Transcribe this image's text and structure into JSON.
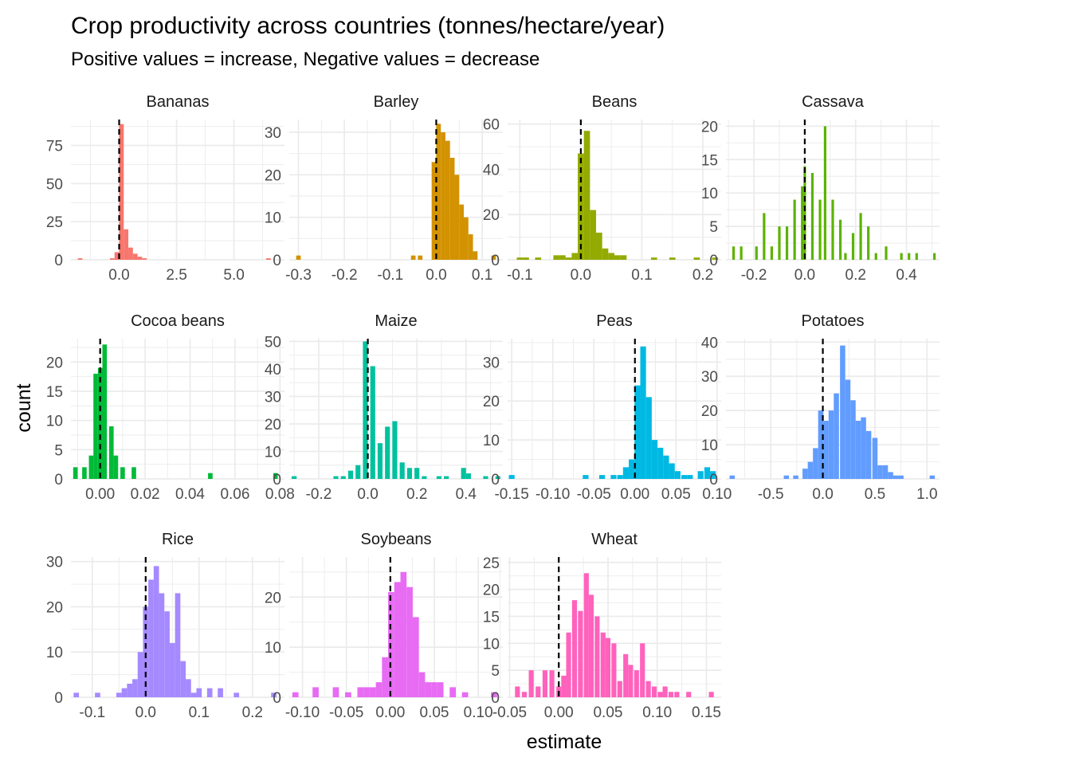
{
  "chart_data": {
    "type": "bar",
    "kind": "faceted histogram",
    "title": "Crop productivity across countries (tonnes/hectare/year)",
    "subtitle": "Positive values = increase, Negative values = decrease",
    "xlabel": "estimate",
    "ylabel": "count",
    "grid": true,
    "legend": "none",
    "reference_line": {
      "x": 0,
      "style": "dashed",
      "color": "#000000"
    },
    "facets": [
      {
        "name": "Bananas",
        "color": "#F8766D",
        "xlim": [
          -2.1,
          7.2
        ],
        "ylim": [
          0,
          92
        ],
        "xticks": [
          0,
          2.5,
          5
        ],
        "xtick_labels": [
          "0.0",
          "2.5",
          "5.0"
        ],
        "yticks": [
          0,
          25,
          50,
          75
        ],
        "ytick_labels": [
          "0",
          "25",
          "50",
          "75"
        ],
        "bins": [
          [
            -1.7,
            1
          ],
          [
            -0.3,
            1
          ],
          [
            -0.1,
            5
          ],
          [
            0.1,
            89
          ],
          [
            0.3,
            20
          ],
          [
            0.5,
            8
          ],
          [
            0.7,
            4
          ],
          [
            0.9,
            2
          ],
          [
            1.1,
            1
          ],
          [
            6.5,
            1
          ]
        ]
      },
      {
        "name": "Barley",
        "color": "#D39200",
        "xlim": [
          -0.32,
          0.145
        ],
        "ylim": [
          0,
          33
        ],
        "xticks": [
          -0.3,
          -0.2,
          -0.1,
          0,
          0.1
        ],
        "xtick_labels": [
          "-0.3",
          "-0.2",
          "-0.1",
          "0.0",
          "0.1"
        ],
        "yticks": [
          0,
          10,
          20,
          30
        ],
        "ytick_labels": [
          "0",
          "10",
          "20",
          "30"
        ],
        "bins": [
          [
            -0.3,
            1
          ],
          [
            -0.05,
            1
          ],
          [
            -0.035,
            1
          ],
          [
            -0.005,
            23
          ],
          [
            0.005,
            32
          ],
          [
            0.015,
            30
          ],
          [
            0.025,
            28
          ],
          [
            0.035,
            24
          ],
          [
            0.045,
            20
          ],
          [
            0.055,
            13
          ],
          [
            0.065,
            10
          ],
          [
            0.075,
            6
          ],
          [
            0.085,
            2
          ],
          [
            0.125,
            1
          ]
        ]
      },
      {
        "name": "Beans",
        "color": "#93AA00",
        "xlim": [
          -0.12,
          0.23
        ],
        "ylim": [
          0,
          62
        ],
        "xticks": [
          -0.1,
          0,
          0.1,
          0.2
        ],
        "xtick_labels": [
          "-0.1",
          "0.0",
          "0.1",
          "0.2"
        ],
        "yticks": [
          0,
          20,
          40,
          60
        ],
        "ytick_labels": [
          "0",
          "20",
          "40",
          "60"
        ],
        "bins": [
          [
            -0.1,
            1
          ],
          [
            -0.09,
            1
          ],
          [
            -0.07,
            1
          ],
          [
            -0.04,
            2
          ],
          [
            -0.03,
            2
          ],
          [
            -0.02,
            1
          ],
          [
            -0.01,
            3
          ],
          [
            0.0,
            47
          ],
          [
            0.01,
            57
          ],
          [
            0.02,
            22
          ],
          [
            0.03,
            12
          ],
          [
            0.04,
            5
          ],
          [
            0.05,
            3
          ],
          [
            0.06,
            2
          ],
          [
            0.07,
            2
          ],
          [
            0.12,
            1
          ],
          [
            0.15,
            1
          ],
          [
            0.19,
            1
          ],
          [
            0.22,
            1
          ]
        ]
      },
      {
        "name": "Cassava",
        "color": "#5BB300",
        "xlim": [
          -0.31,
          0.53
        ],
        "ylim": [
          0,
          21
        ],
        "xticks": [
          -0.2,
          0,
          0.2,
          0.4
        ],
        "xtick_labels": [
          "-0.2",
          "0.0",
          "0.2",
          "0.4"
        ],
        "yticks": [
          0,
          5,
          10,
          15,
          20
        ],
        "ytick_labels": [
          "0",
          "5",
          "10",
          "15",
          "20"
        ],
        "bins": [
          [
            -0.28,
            2
          ],
          [
            -0.25,
            2
          ],
          [
            -0.19,
            2
          ],
          [
            -0.16,
            7
          ],
          [
            -0.13,
            2
          ],
          [
            -0.1,
            5
          ],
          [
            -0.07,
            5
          ],
          [
            -0.04,
            9
          ],
          [
            -0.01,
            11
          ],
          [
            0.0,
            14
          ],
          [
            0.03,
            13
          ],
          [
            0.06,
            9
          ],
          [
            0.08,
            20
          ],
          [
            0.11,
            9
          ],
          [
            0.14,
            6
          ],
          [
            0.16,
            1
          ],
          [
            0.19,
            4
          ],
          [
            0.22,
            7
          ],
          [
            0.25,
            5
          ],
          [
            0.28,
            1
          ],
          [
            0.32,
            2
          ],
          [
            0.38,
            1
          ],
          [
            0.41,
            1
          ],
          [
            0.44,
            1
          ],
          [
            0.51,
            1
          ]
        ]
      },
      {
        "name": "Cocoa beans",
        "color": "#00BA38",
        "xlim": [
          -0.013,
          0.082
        ],
        "ylim": [
          0,
          24
        ],
        "xticks": [
          0,
          0.02,
          0.04,
          0.06,
          0.08
        ],
        "xtick_labels": [
          "0.00",
          "0.02",
          "0.04",
          "0.06",
          "0.08"
        ],
        "yticks": [
          0,
          5,
          10,
          15,
          20
        ],
        "ytick_labels": [
          "0",
          "5",
          "10",
          "15",
          "20"
        ],
        "bins": [
          [
            -0.011,
            2
          ],
          [
            -0.007,
            2
          ],
          [
            -0.004,
            4
          ],
          [
            -0.002,
            18
          ],
          [
            0.0,
            19
          ],
          [
            0.002,
            23
          ],
          [
            0.005,
            9
          ],
          [
            0.007,
            4
          ],
          [
            0.01,
            2
          ],
          [
            0.015,
            2
          ],
          [
            0.049,
            1
          ],
          [
            0.078,
            1
          ]
        ]
      },
      {
        "name": "Maize",
        "color": "#00C19F",
        "xlim": [
          -0.32,
          0.55
        ],
        "ylim": [
          0,
          51
        ],
        "xticks": [
          -0.2,
          0,
          0.2,
          0.4
        ],
        "xtick_labels": [
          "-0.2",
          "0.0",
          "0.2",
          "0.4"
        ],
        "yticks": [
          0,
          10,
          20,
          30,
          40,
          50
        ],
        "ytick_labels": [
          "0",
          "10",
          "20",
          "30",
          "40",
          "50"
        ],
        "bins": [
          [
            -0.3,
            1
          ],
          [
            -0.13,
            1
          ],
          [
            -0.1,
            1
          ],
          [
            -0.07,
            3
          ],
          [
            -0.04,
            5
          ],
          [
            -0.01,
            50
          ],
          [
            0.02,
            41
          ],
          [
            0.05,
            13
          ],
          [
            0.08,
            19
          ],
          [
            0.11,
            21
          ],
          [
            0.14,
            6
          ],
          [
            0.17,
            4
          ],
          [
            0.2,
            4
          ],
          [
            0.23,
            1
          ],
          [
            0.29,
            1
          ],
          [
            0.32,
            1
          ],
          [
            0.39,
            4
          ],
          [
            0.41,
            2
          ],
          [
            0.48,
            1
          ],
          [
            0.53,
            1
          ]
        ]
      },
      {
        "name": "Peas",
        "color": "#00B9E3",
        "xlim": [
          -0.155,
          0.105
        ],
        "ylim": [
          0,
          36
        ],
        "xticks": [
          -0.15,
          -0.1,
          -0.05,
          0,
          0.05,
          0.1
        ],
        "xtick_labels": [
          "-0.15",
          "-0.10",
          "-0.05",
          "0.00",
          "0.05",
          "0.10"
        ],
        "yticks": [
          0,
          10,
          20,
          30
        ],
        "ytick_labels": [
          "0",
          "10",
          "20",
          "30"
        ],
        "bins": [
          [
            -0.15,
            1
          ],
          [
            -0.06,
            1
          ],
          [
            -0.04,
            1
          ],
          [
            -0.026,
            1
          ],
          [
            -0.018,
            1
          ],
          [
            -0.011,
            3
          ],
          [
            -0.004,
            5
          ],
          [
            0.003,
            24
          ],
          [
            0.01,
            34
          ],
          [
            0.017,
            21
          ],
          [
            0.024,
            10
          ],
          [
            0.031,
            8
          ],
          [
            0.038,
            6
          ],
          [
            0.045,
            4
          ],
          [
            0.052,
            2
          ],
          [
            0.06,
            1
          ],
          [
            0.067,
            1
          ],
          [
            0.08,
            2
          ],
          [
            0.088,
            3
          ],
          [
            0.095,
            2
          ]
        ]
      },
      {
        "name": "Potatoes",
        "color": "#619CFF",
        "xlim": [
          -0.93,
          1.12
        ],
        "ylim": [
          0,
          41
        ],
        "xticks": [
          -0.5,
          0,
          0.5,
          1.0
        ],
        "xtick_labels": [
          "-0.5",
          "0.0",
          "0.5",
          "1.0"
        ],
        "yticks": [
          0,
          10,
          20,
          30,
          40
        ],
        "ytick_labels": [
          "0",
          "10",
          "20",
          "30",
          "40"
        ],
        "bins": [
          [
            -0.87,
            1
          ],
          [
            -0.35,
            1
          ],
          [
            -0.26,
            1
          ],
          [
            -0.17,
            3
          ],
          [
            -0.12,
            5
          ],
          [
            -0.07,
            9
          ],
          [
            -0.02,
            20
          ],
          [
            0.03,
            17
          ],
          [
            0.08,
            20
          ],
          [
            0.13,
            25
          ],
          [
            0.19,
            39
          ],
          [
            0.24,
            29
          ],
          [
            0.29,
            23
          ],
          [
            0.34,
            17
          ],
          [
            0.39,
            18
          ],
          [
            0.44,
            14
          ],
          [
            0.5,
            12
          ],
          [
            0.55,
            4
          ],
          [
            0.6,
            4
          ],
          [
            0.65,
            2
          ],
          [
            0.7,
            1
          ],
          [
            0.75,
            1
          ],
          [
            1.05,
            1
          ]
        ]
      },
      {
        "name": "Rice",
        "color": "#A58AFF",
        "xlim": [
          -0.14,
          0.26
        ],
        "ylim": [
          0,
          31
        ],
        "xticks": [
          -0.1,
          0,
          0.1,
          0.2
        ],
        "xtick_labels": [
          "-0.1",
          "0.0",
          "0.1",
          "0.2"
        ],
        "yticks": [
          0,
          10,
          20,
          30
        ],
        "ytick_labels": [
          "0",
          "10",
          "20",
          "30"
        ],
        "bins": [
          [
            -0.13,
            1
          ],
          [
            -0.09,
            1
          ],
          [
            -0.05,
            1
          ],
          [
            -0.04,
            2
          ],
          [
            -0.03,
            3
          ],
          [
            -0.02,
            4
          ],
          [
            -0.01,
            10
          ],
          [
            0.0,
            20
          ],
          [
            0.01,
            26
          ],
          [
            0.02,
            29
          ],
          [
            0.03,
            23
          ],
          [
            0.04,
            19
          ],
          [
            0.05,
            12
          ],
          [
            0.06,
            23
          ],
          [
            0.07,
            8
          ],
          [
            0.08,
            4
          ],
          [
            0.09,
            1
          ],
          [
            0.1,
            2
          ],
          [
            0.12,
            2
          ],
          [
            0.14,
            2
          ],
          [
            0.17,
            1
          ],
          [
            0.24,
            1
          ]
        ]
      },
      {
        "name": "Soybeans",
        "color": "#E76BF3",
        "xlim": [
          -0.115,
          0.128
        ],
        "ylim": [
          0,
          28
        ],
        "xticks": [
          -0.1,
          -0.05,
          0,
          0.05,
          0.1
        ],
        "xtick_labels": [
          "-0.10",
          "-0.05",
          "0.00",
          "0.05",
          "0.10"
        ],
        "yticks": [
          0,
          10,
          20
        ],
        "ytick_labels": [
          "0",
          "10",
          "20"
        ],
        "bins": [
          [
            -0.108,
            1
          ],
          [
            -0.085,
            2
          ],
          [
            -0.062,
            2
          ],
          [
            -0.048,
            1
          ],
          [
            -0.034,
            2
          ],
          [
            -0.027,
            2
          ],
          [
            -0.02,
            2
          ],
          [
            -0.013,
            3
          ],
          [
            -0.006,
            8
          ],
          [
            0.001,
            21
          ],
          [
            0.008,
            23
          ],
          [
            0.015,
            25
          ],
          [
            0.022,
            22
          ],
          [
            0.029,
            16
          ],
          [
            0.036,
            5
          ],
          [
            0.043,
            3
          ],
          [
            0.05,
            3
          ],
          [
            0.057,
            3
          ],
          [
            0.071,
            2
          ],
          [
            0.085,
            1
          ],
          [
            0.118,
            1
          ]
        ]
      },
      {
        "name": "Wheat",
        "color": "#FF62BC",
        "xlim": [
          -0.052,
          0.165
        ],
        "ylim": [
          0,
          26
        ],
        "xticks": [
          -0.05,
          0,
          0.05,
          0.1,
          0.15
        ],
        "xtick_labels": [
          "-0.05",
          "0.00",
          "0.05",
          "0.10",
          "0.15"
        ],
        "yticks": [
          0,
          5,
          10,
          15,
          20,
          25
        ],
        "ytick_labels": [
          "0",
          "5",
          "10",
          "15",
          "20",
          "25"
        ],
        "bins": [
          [
            -0.042,
            2
          ],
          [
            -0.035,
            1
          ],
          [
            -0.028,
            5
          ],
          [
            -0.021,
            2
          ],
          [
            -0.014,
            5
          ],
          [
            -0.007,
            5
          ],
          [
            0.0,
            2
          ],
          [
            0.005,
            4
          ],
          [
            0.01,
            12
          ],
          [
            0.016,
            18
          ],
          [
            0.022,
            16
          ],
          [
            0.028,
            23
          ],
          [
            0.033,
            19
          ],
          [
            0.039,
            15
          ],
          [
            0.045,
            12
          ],
          [
            0.05,
            11
          ],
          [
            0.056,
            10
          ],
          [
            0.062,
            3
          ],
          [
            0.068,
            8
          ],
          [
            0.073,
            6
          ],
          [
            0.079,
            5
          ],
          [
            0.085,
            10
          ],
          [
            0.091,
            3
          ],
          [
            0.097,
            2
          ],
          [
            0.103,
            1
          ],
          [
            0.108,
            2
          ],
          [
            0.114,
            1
          ],
          [
            0.12,
            1
          ],
          [
            0.132,
            1
          ],
          [
            0.155,
            1
          ]
        ]
      }
    ]
  }
}
